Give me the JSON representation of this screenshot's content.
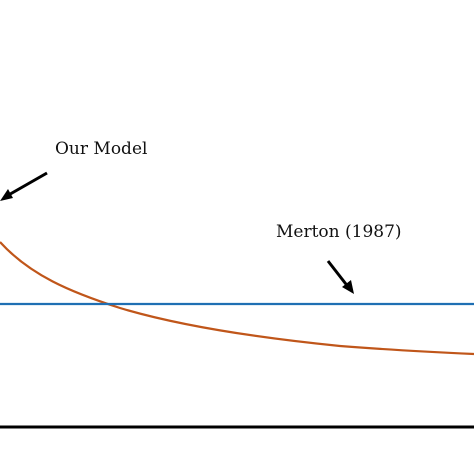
{
  "chart_data": {
    "type": "line",
    "title": "",
    "xlabel": "",
    "ylabel": "",
    "grid": false,
    "series": [
      {
        "label": "Our Model",
        "color": "#c0561a",
        "shape": "decreasing"
      },
      {
        "label": "Merton (1987)",
        "color": "#1f6fb3",
        "shape": "constant"
      }
    ],
    "annotations": [
      {
        "text": "Our Model",
        "points_to": "Our Model"
      },
      {
        "text": "Merton (1987)",
        "points_to": "Merton (1987)"
      }
    ],
    "axis_color": "#000000"
  }
}
